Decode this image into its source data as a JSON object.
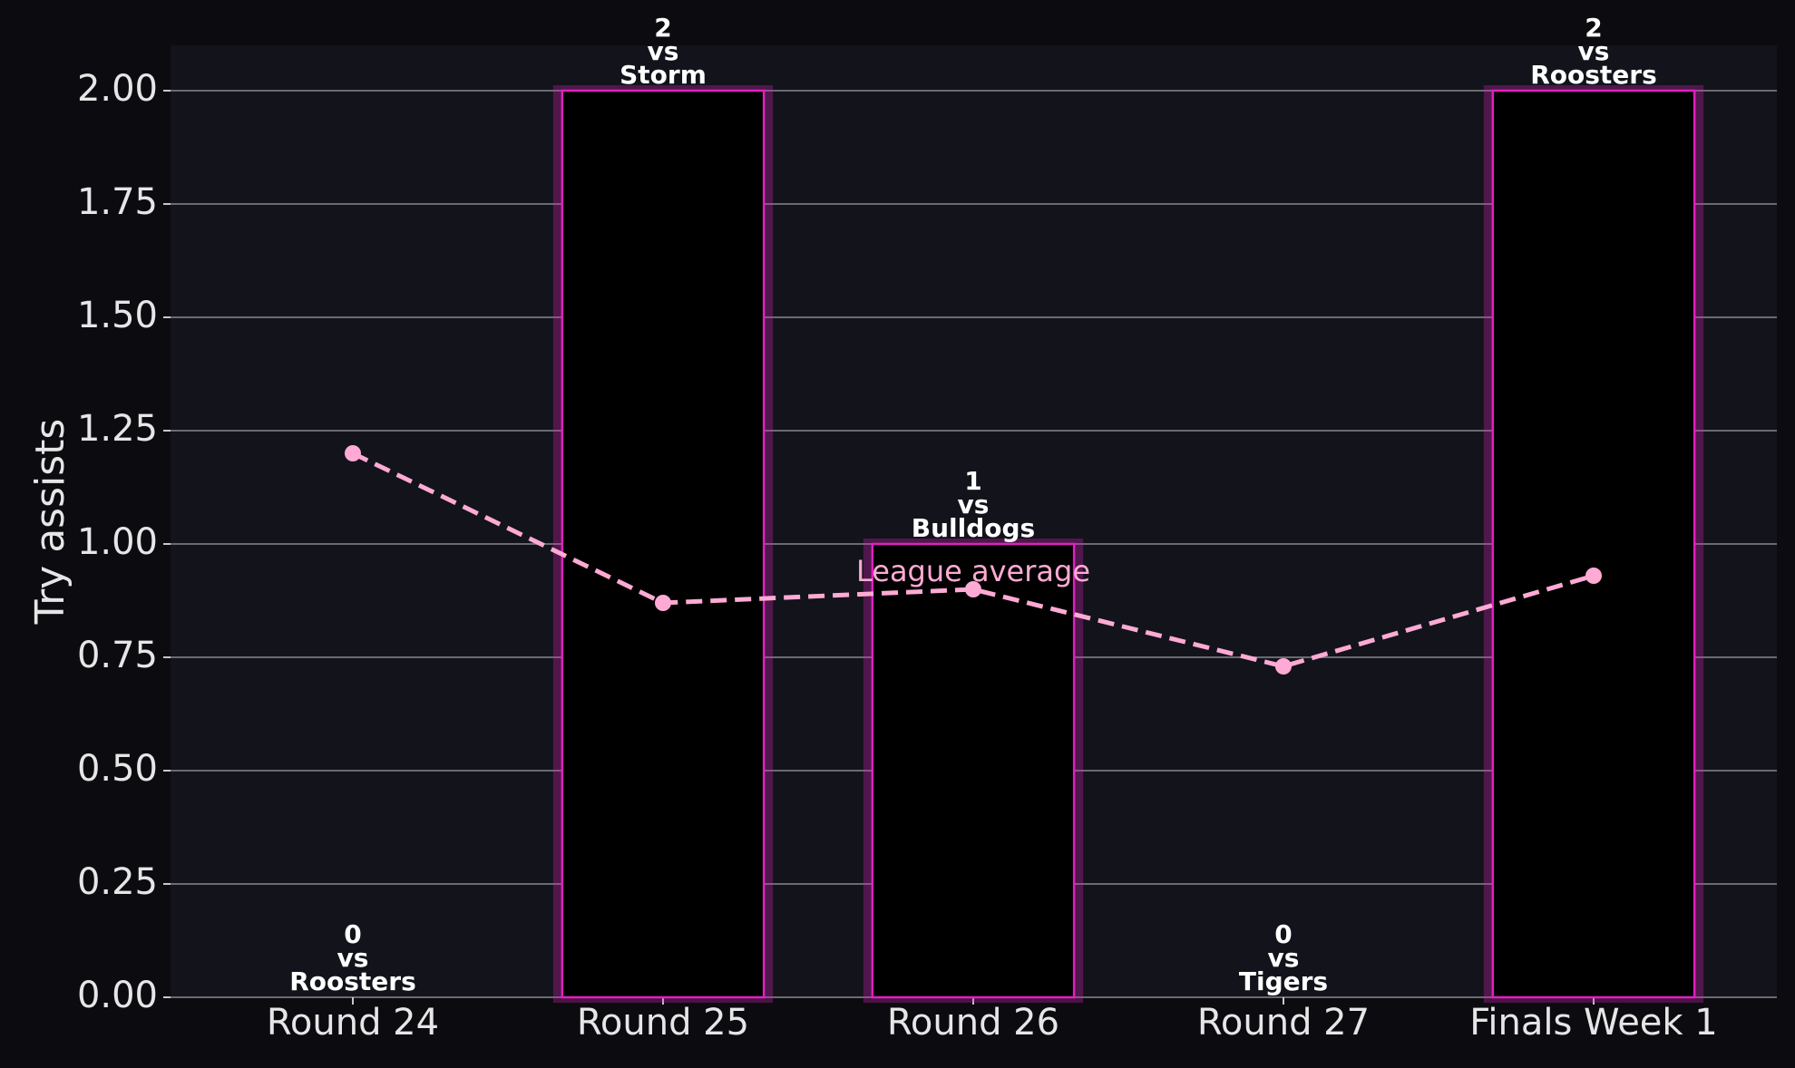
{
  "chart_data": {
    "type": "bar",
    "y_label": "Try assists",
    "categories": [
      "Round 24",
      "Round 25",
      "Round 26",
      "Round 27",
      "Finals Week 1"
    ],
    "series": [
      {
        "type": "bar",
        "color": "#e020c0",
        "values": [
          0,
          2,
          1,
          0,
          2
        ],
        "value_labels": [
          "0\nvs\nRoosters",
          "2\nvs\nStorm",
          "1\nvs\nBulldogs",
          "0\nvs\nTigers",
          "2\nvs\nRoosters"
        ]
      },
      {
        "type": "line",
        "name": "League average",
        "color": "#ffaad4",
        "values": [
          1.2,
          0.87,
          0.9,
          0.73,
          0.93
        ]
      }
    ],
    "ylim": [
      0,
      2.1
    ],
    "yticks": [
      {
        "value": 0,
        "label": "0.00"
      },
      {
        "value": 0.25,
        "label": "0.25"
      },
      {
        "value": 0.5,
        "label": "0.50"
      },
      {
        "value": 0.75,
        "label": "0.75"
      },
      {
        "value": 1,
        "label": "1.00"
      },
      {
        "value": 1.25,
        "label": "1.25"
      },
      {
        "value": 1.5,
        "label": "1.50"
      },
      {
        "value": 1.75,
        "label": "1.75"
      },
      {
        "value": 2,
        "label": "2.00"
      }
    ],
    "grid": true
  }
}
